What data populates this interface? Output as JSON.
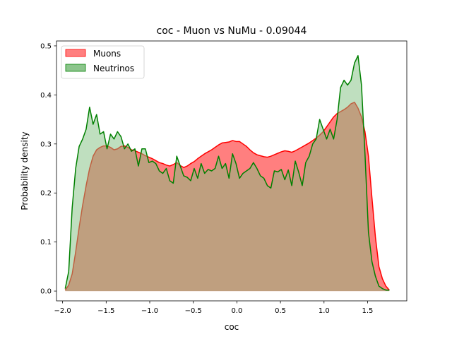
{
  "chart_data": {
    "type": "area",
    "title": "coc - Muon vs NuMu - 0.09044",
    "xlabel": "coc",
    "ylabel": "Probability density",
    "xlim": [
      -2.07,
      1.95
    ],
    "ylim": [
      -0.02,
      0.51
    ],
    "x_ticks": [
      {
        "value": -2.0,
        "label": "−2.0"
      },
      {
        "value": -1.5,
        "label": "−1.5"
      },
      {
        "value": -1.0,
        "label": "−1.0"
      },
      {
        "value": -0.5,
        "label": "−0.5"
      },
      {
        "value": 0.0,
        "label": "0.0"
      },
      {
        "value": 0.5,
        "label": "0.5"
      },
      {
        "value": 1.0,
        "label": "1.0"
      },
      {
        "value": 1.5,
        "label": "1.5"
      }
    ],
    "y_ticks": [
      {
        "value": 0.0,
        "label": "0.0"
      },
      {
        "value": 0.1,
        "label": "0.1"
      },
      {
        "value": 0.2,
        "label": "0.2"
      },
      {
        "value": 0.3,
        "label": "0.3"
      },
      {
        "value": 0.4,
        "label": "0.4"
      },
      {
        "value": 0.5,
        "label": "0.5"
      }
    ],
    "grid": false,
    "legend_position": "top-left",
    "series": [
      {
        "name": "Muons",
        "fill": "#ff7f7f",
        "stroke": "#ff0000",
        "x": [
          -1.97,
          -1.93,
          -1.89,
          -1.85,
          -1.81,
          -1.77,
          -1.73,
          -1.69,
          -1.65,
          -1.61,
          -1.57,
          -1.53,
          -1.49,
          -1.45,
          -1.41,
          -1.37,
          -1.33,
          -1.29,
          -1.25,
          -1.21,
          -1.17,
          -1.13,
          -1.09,
          -1.05,
          -1.01,
          -0.97,
          -0.93,
          -0.89,
          -0.85,
          -0.81,
          -0.77,
          -0.73,
          -0.69,
          -0.65,
          -0.61,
          -0.57,
          -0.53,
          -0.49,
          -0.45,
          -0.41,
          -0.37,
          -0.33,
          -0.29,
          -0.25,
          -0.21,
          -0.17,
          -0.13,
          -0.09,
          -0.05,
          -0.01,
          0.03,
          0.07,
          0.11,
          0.15,
          0.19,
          0.23,
          0.27,
          0.31,
          0.35,
          0.39,
          0.43,
          0.47,
          0.51,
          0.55,
          0.59,
          0.63,
          0.67,
          0.71,
          0.75,
          0.79,
          0.83,
          0.87,
          0.91,
          0.95,
          0.99,
          1.03,
          1.07,
          1.11,
          1.15,
          1.19,
          1.23,
          1.27,
          1.31,
          1.35,
          1.39,
          1.43,
          1.47,
          1.51,
          1.55,
          1.59,
          1.63,
          1.67,
          1.71,
          1.75
        ],
        "values": [
          0.002,
          0.012,
          0.035,
          0.08,
          0.13,
          0.175,
          0.215,
          0.25,
          0.275,
          0.288,
          0.293,
          0.296,
          0.296,
          0.293,
          0.288,
          0.29,
          0.295,
          0.296,
          0.293,
          0.288,
          0.286,
          0.283,
          0.28,
          0.276,
          0.273,
          0.27,
          0.266,
          0.262,
          0.26,
          0.257,
          0.255,
          0.258,
          0.262,
          0.256,
          0.252,
          0.255,
          0.26,
          0.264,
          0.27,
          0.275,
          0.28,
          0.284,
          0.288,
          0.293,
          0.298,
          0.302,
          0.303,
          0.304,
          0.307,
          0.305,
          0.305,
          0.3,
          0.295,
          0.288,
          0.282,
          0.278,
          0.276,
          0.274,
          0.273,
          0.275,
          0.278,
          0.281,
          0.284,
          0.286,
          0.285,
          0.283,
          0.286,
          0.29,
          0.294,
          0.298,
          0.302,
          0.307,
          0.312,
          0.318,
          0.325,
          0.335,
          0.345,
          0.355,
          0.362,
          0.366,
          0.37,
          0.375,
          0.382,
          0.385,
          0.373,
          0.355,
          0.325,
          0.275,
          0.19,
          0.11,
          0.05,
          0.025,
          0.01,
          0.002
        ]
      },
      {
        "name": "Neutrinos",
        "fill": "#7fbf7f",
        "stroke": "#008000",
        "x": [
          -1.97,
          -1.93,
          -1.89,
          -1.85,
          -1.81,
          -1.77,
          -1.73,
          -1.69,
          -1.65,
          -1.61,
          -1.57,
          -1.53,
          -1.49,
          -1.45,
          -1.41,
          -1.37,
          -1.33,
          -1.29,
          -1.25,
          -1.21,
          -1.17,
          -1.13,
          -1.09,
          -1.05,
          -1.01,
          -0.97,
          -0.93,
          -0.89,
          -0.85,
          -0.81,
          -0.77,
          -0.73,
          -0.69,
          -0.65,
          -0.61,
          -0.57,
          -0.53,
          -0.49,
          -0.45,
          -0.41,
          -0.37,
          -0.33,
          -0.29,
          -0.25,
          -0.21,
          -0.17,
          -0.13,
          -0.09,
          -0.05,
          -0.01,
          0.03,
          0.07,
          0.11,
          0.15,
          0.19,
          0.23,
          0.27,
          0.31,
          0.35,
          0.39,
          0.43,
          0.47,
          0.51,
          0.55,
          0.59,
          0.63,
          0.67,
          0.71,
          0.75,
          0.79,
          0.83,
          0.87,
          0.91,
          0.95,
          0.99,
          1.03,
          1.07,
          1.11,
          1.15,
          1.19,
          1.23,
          1.27,
          1.31,
          1.35,
          1.39,
          1.43,
          1.47,
          1.51,
          1.55,
          1.59,
          1.63,
          1.67,
          1.71,
          1.75
        ],
        "values": [
          0.005,
          0.04,
          0.17,
          0.25,
          0.295,
          0.31,
          0.33,
          0.375,
          0.34,
          0.36,
          0.32,
          0.325,
          0.29,
          0.32,
          0.31,
          0.325,
          0.315,
          0.29,
          0.3,
          0.285,
          0.29,
          0.255,
          0.29,
          0.29,
          0.262,
          0.265,
          0.26,
          0.245,
          0.24,
          0.25,
          0.225,
          0.22,
          0.275,
          0.255,
          0.235,
          0.232,
          0.225,
          0.25,
          0.23,
          0.26,
          0.24,
          0.248,
          0.245,
          0.25,
          0.275,
          0.25,
          0.26,
          0.23,
          0.28,
          0.26,
          0.23,
          0.24,
          0.245,
          0.25,
          0.262,
          0.25,
          0.235,
          0.23,
          0.215,
          0.21,
          0.245,
          0.243,
          0.248,
          0.227,
          0.247,
          0.215,
          0.265,
          0.242,
          0.215,
          0.262,
          0.275,
          0.3,
          0.31,
          0.35,
          0.33,
          0.31,
          0.33,
          0.31,
          0.35,
          0.415,
          0.43,
          0.42,
          0.43,
          0.465,
          0.48,
          0.42,
          0.28,
          0.12,
          0.06,
          0.03,
          0.01,
          0.005,
          0.002,
          0.002
        ]
      }
    ]
  }
}
